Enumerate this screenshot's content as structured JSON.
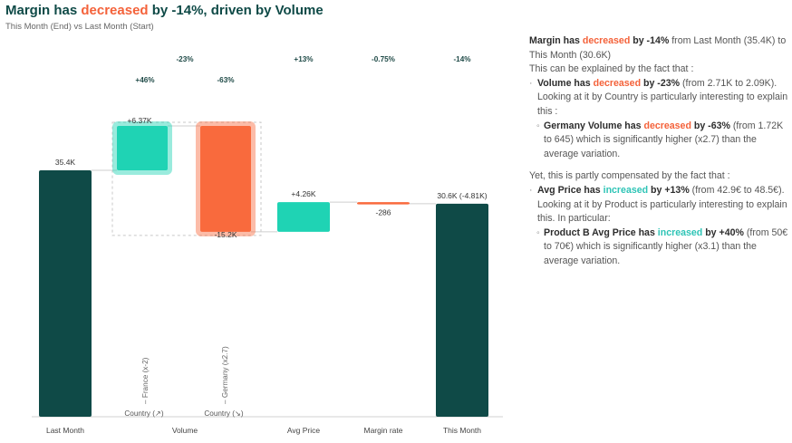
{
  "header": {
    "title_pre": "Margin has ",
    "title_hl": "decreased",
    "title_post": " by -14%, driven by Volume",
    "subtitle": "This Month (End) vs Last Month (Start)"
  },
  "colors": {
    "dark": "#0f4a47",
    "teal": "#1fd3b4",
    "orange": "#f96a3d",
    "text_dec": "#f4623a",
    "text_inc": "#2ec4b6"
  },
  "chart_data": {
    "type": "waterfall",
    "unit": "K",
    "steps": [
      {
        "id": "last_month",
        "category": "Last Month",
        "kind": "total",
        "value": 35.4,
        "label": "35.4K"
      },
      {
        "id": "france",
        "category": "Volume",
        "sub_label": "France (x-2)",
        "kind": "delta",
        "value": 6.37,
        "label": "+6.37K",
        "pct_label": "+46%"
      },
      {
        "id": "germany",
        "category": "Volume",
        "sub_label": "Germany (x2.7)",
        "kind": "delta",
        "value": -15.2,
        "label": "-15.2K",
        "pct_label": "-63%"
      },
      {
        "id": "avg_price",
        "category": "Avg Price",
        "kind": "delta",
        "value": 4.26,
        "label": "+4.26K",
        "pct_label": "+13%"
      },
      {
        "id": "margin_rate",
        "category": "Margin rate",
        "kind": "delta",
        "value": -0.286,
        "label": "-286",
        "pct_label": "-0.75%"
      },
      {
        "id": "this_month",
        "category": "This Month",
        "kind": "total",
        "value": 30.6,
        "label": "30.6K (-4.81K)",
        "pct_label": "-14%"
      }
    ],
    "group": {
      "category": "Volume",
      "pct_label": "-23%",
      "sub_axis_labels": [
        "Country (↗)",
        "Country (↘)"
      ]
    },
    "x_labels": [
      "Last Month",
      "Volume",
      "Avg Price",
      "Margin rate",
      "This Month"
    ]
  },
  "panel": {
    "p1": [
      "Margin has ",
      "decreased",
      " by -14%",
      " from Last Month (35.4K) to This Month (30.6K)"
    ],
    "p2": "This can be explained by the fact that :",
    "b1": [
      "Volume has ",
      "decreased",
      " by -23%",
      " (from 2.71K to 2.09K). Looking at it by Country is particularly interesting to explain this :"
    ],
    "b1a": [
      "Germany Volume has ",
      "decreased",
      " by -63%",
      " (from 1.72K to 645) which is significantly higher (x2.7) than the average variation."
    ],
    "p3": "Yet, this is partly compensated by the fact that :",
    "b2": [
      "Avg Price has ",
      "increased",
      " by +13%",
      " (from 42.9€ to 48.5€). Looking at it by Product is particularly interesting to explain this. In particular:"
    ],
    "b2a": [
      "Product B Avg Price has ",
      "increased",
      " by +40%",
      " (from 50€ to 70€) which is significantly higher (x3.1) than the average variation."
    ]
  }
}
